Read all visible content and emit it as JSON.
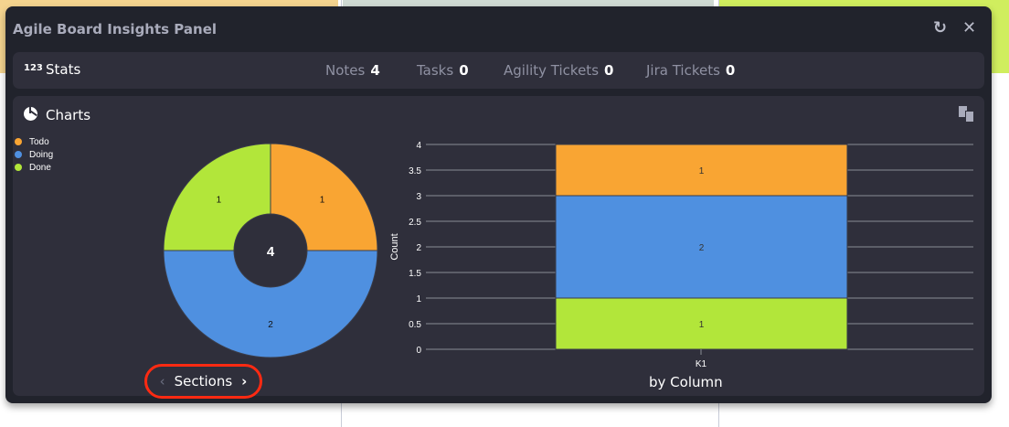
{
  "panel": {
    "title": "Agile Board Insights Panel",
    "refresh_icon": "refresh-icon",
    "close_icon": "close-icon"
  },
  "stats": {
    "icon": "123",
    "title": "Stats",
    "items": [
      {
        "label": "Notes",
        "value": "4"
      },
      {
        "label": "Tasks",
        "value": "0"
      },
      {
        "label": "Agility Tickets",
        "value": "0"
      },
      {
        "label": "Jira Tickets",
        "value": "0"
      }
    ]
  },
  "charts": {
    "title": "Charts",
    "icon": "chart-pie-icon",
    "copy_icon": "copy-icon"
  },
  "colors": {
    "Todo": "#f9a533",
    "Doing": "#4f90e0",
    "Done": "#b2e63a"
  },
  "nav": {
    "label": "Sections",
    "prev": "‹",
    "next": "›"
  },
  "chart_data": [
    {
      "type": "pie",
      "variant": "donut",
      "legend": [
        "Todo",
        "Doing",
        "Done"
      ],
      "legend_position": "left",
      "center_label": "4",
      "slices": [
        {
          "name": "Todo",
          "value": 1,
          "label": "1"
        },
        {
          "name": "Doing",
          "value": 2,
          "label": "2"
        },
        {
          "name": "Done",
          "value": 1,
          "label": "1"
        }
      ]
    },
    {
      "type": "bar",
      "stacked": true,
      "categories": [
        "K1"
      ],
      "ylabel": "Count",
      "xlabel": "by Column",
      "ylim": [
        0,
        4
      ],
      "yticks": [
        "0",
        "0.5",
        "1",
        "1.5",
        "2",
        "2.5",
        "3",
        "3.5",
        "4"
      ],
      "grid": true,
      "series": [
        {
          "name": "Done",
          "values": [
            1
          ]
        },
        {
          "name": "Doing",
          "values": [
            2
          ]
        },
        {
          "name": "Todo",
          "values": [
            1
          ]
        }
      ]
    }
  ]
}
